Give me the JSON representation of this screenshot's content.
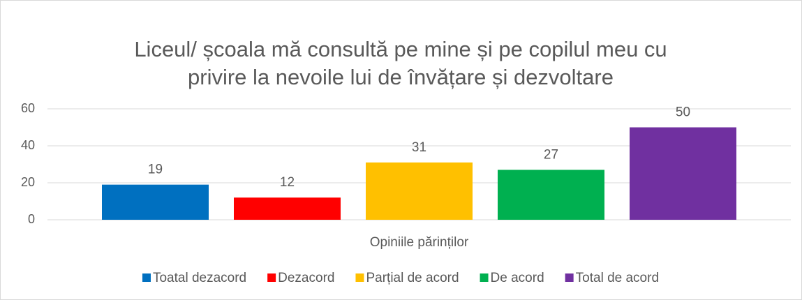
{
  "chart_data": {
    "type": "bar",
    "title": [
      "Liceul/ școala mă consultă pe mine și pe copilul meu cu",
      "privire la nevoile lui de învățare și dezvoltare"
    ],
    "categories": [
      "Opiniile părinților"
    ],
    "series": [
      {
        "name": "Toatal dezacord",
        "color": "#0070c0",
        "values": [
          19
        ]
      },
      {
        "name": "Dezacord",
        "color": "#ff0000",
        "values": [
          12
        ]
      },
      {
        "name": "Parțial de acord",
        "color": "#ffc000",
        "values": [
          31
        ]
      },
      {
        "name": "De acord",
        "color": "#00b050",
        "values": [
          27
        ]
      },
      {
        "name": "Total de acord",
        "color": "#7030a0",
        "values": [
          50
        ]
      }
    ],
    "ylim": [
      0,
      60
    ],
    "yticks": [
      0,
      20,
      40,
      60
    ],
    "grid": true,
    "legend": "bottom"
  }
}
